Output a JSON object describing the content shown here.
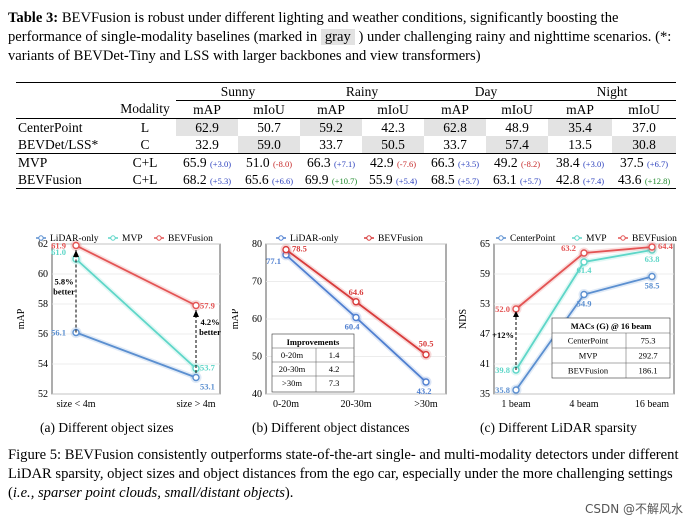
{
  "table": {
    "caption_label": "Table 3:",
    "caption_text_a": "BEVFusion is robust under different lighting and weather conditions, significantly boosting the performance of single-modality baselines (marked in",
    "caption_gray": "gray",
    "caption_text_b": ") under challenging rainy and nighttime scenarios. (*: variants of BEVDet-Tiny and LSS with larger backbones and view transformers)",
    "modality_header": "Modality",
    "conditions": [
      "Sunny",
      "Rainy",
      "Day",
      "Night"
    ],
    "metrics": [
      "mAP",
      "mIoU"
    ],
    "rows": [
      {
        "model": "CenterPoint",
        "modality": "L",
        "values": [
          "62.9",
          "50.7",
          "59.2",
          "42.3",
          "62.8",
          "48.9",
          "35.4",
          "37.0"
        ],
        "deltas": []
      },
      {
        "model": "BEVDet/LSS*",
        "modality": "C",
        "values": [
          "32.9",
          "59.0",
          "33.7",
          "50.5",
          "33.7",
          "57.4",
          "13.5",
          "30.8"
        ],
        "deltas": []
      },
      {
        "model": "MVP",
        "modality": "C+L",
        "values": [
          "65.9",
          "51.0",
          "66.3",
          "42.9",
          "66.3",
          "49.2",
          "38.4",
          "37.5"
        ],
        "deltas": [
          "(+3.0)",
          "(-8.0)",
          "(+7.1)",
          "(-7.6)",
          "(+3.5)",
          "(-8.2)",
          "(+3.0)",
          "(+6.7)"
        ]
      },
      {
        "model": "BEVFusion",
        "modality": "C+L",
        "values": [
          "68.2",
          "65.6",
          "69.9",
          "55.9",
          "68.5",
          "63.1",
          "42.8",
          "43.6"
        ],
        "deltas": [
          "(+5.3)",
          "(+6.6)",
          "(+10.7)",
          "(+5.4)",
          "(+5.7)",
          "(+5.7)",
          "(+7.4)",
          "(+12.8)"
        ]
      }
    ]
  },
  "figure": {
    "caption_label": "Figure 5:",
    "caption_text": "BEVFusion consistently outperforms state-of-the-art single- and multi-modality detectors under different LiDAR sparsity, object sizes and object distances from the ego car, especially under the more challenging settings (",
    "caption_italic": "i.e., sparser point clouds, small/distant objects",
    "caption_end": ").",
    "subcaptions": [
      "(a) Different object sizes",
      "(b) Different object distances",
      "(c) Different LiDAR sparsity"
    ]
  },
  "chart_data": [
    {
      "type": "line",
      "ylabel": "mAP",
      "categories": [
        "size < 4m",
        "size > 4m"
      ],
      "ylim": [
        52,
        62
      ],
      "yticks": [
        "52",
        "54",
        "56",
        "58",
        "60",
        "62"
      ],
      "series": [
        {
          "name": "LiDAR-only",
          "color": "#5b8fd0",
          "values": [
            56.1,
            53.1
          ],
          "labels": [
            "56.1",
            "53.1"
          ]
        },
        {
          "name": "MVP",
          "color": "#5ed6c8",
          "values": [
            61.0,
            53.7
          ],
          "labels": [
            "61.0",
            "53.7"
          ]
        },
        {
          "name": "BEVFusion",
          "color": "#e35454",
          "values": [
            61.9,
            57.9
          ],
          "labels": [
            "61.9",
            "57.9"
          ]
        }
      ],
      "annotations": [
        "5.8%",
        "better",
        "4.2%",
        "better"
      ]
    },
    {
      "type": "line",
      "ylabel": "mAP",
      "categories": [
        "0-20m",
        "20-30m",
        ">30m"
      ],
      "ylim": [
        40,
        80
      ],
      "yticks": [
        "40",
        "50",
        "60",
        "70",
        "80"
      ],
      "series": [
        {
          "name": "LiDAR-only",
          "color": "#4f7fd0",
          "values": [
            77.1,
            60.4,
            43.2
          ],
          "labels": [
            "77.1",
            "60.4",
            "43.2"
          ]
        },
        {
          "name": "BEVFusion",
          "color": "#d83b3b",
          "values": [
            78.5,
            64.6,
            50.5
          ],
          "labels": [
            "78.5",
            "64.6",
            "50.5"
          ]
        }
      ],
      "inset_table": {
        "title": "Improvements",
        "rows": [
          [
            "0-20m",
            "1.4"
          ],
          [
            "20-30m",
            "4.2"
          ],
          [
            ">30m",
            "7.3"
          ]
        ]
      }
    },
    {
      "type": "line",
      "ylabel": "NDS",
      "categories": [
        "1 beam",
        "4 beam",
        "16 beam"
      ],
      "ylim": [
        35,
        65
      ],
      "yticks": [
        "35",
        "41",
        "47",
        "53",
        "59",
        "65"
      ],
      "series": [
        {
          "name": "CenterPoint",
          "color": "#5b8fd0",
          "values": [
            35.8,
            54.9,
            58.5
          ],
          "labels": [
            "35.8",
            "54.9",
            "58.5"
          ]
        },
        {
          "name": "MVP",
          "color": "#5ed6c8",
          "values": [
            39.8,
            61.4,
            63.8
          ],
          "labels": [
            "39.8",
            "61.4",
            "63.8"
          ]
        },
        {
          "name": "BEVFusion",
          "color": "#e35454",
          "values": [
            52.0,
            63.2,
            64.4
          ],
          "labels": [
            "52.0",
            "63.2",
            "64.4"
          ]
        }
      ],
      "annotations": [
        "+12%"
      ],
      "inset_table": {
        "title": "MACs (G) @ 16 beam",
        "rows": [
          [
            "CenterPoint",
            "75.3"
          ],
          [
            "MVP",
            "292.7"
          ],
          [
            "BEVFusion",
            "186.1"
          ]
        ]
      }
    }
  ],
  "watermark": "CSDN @不解风水"
}
